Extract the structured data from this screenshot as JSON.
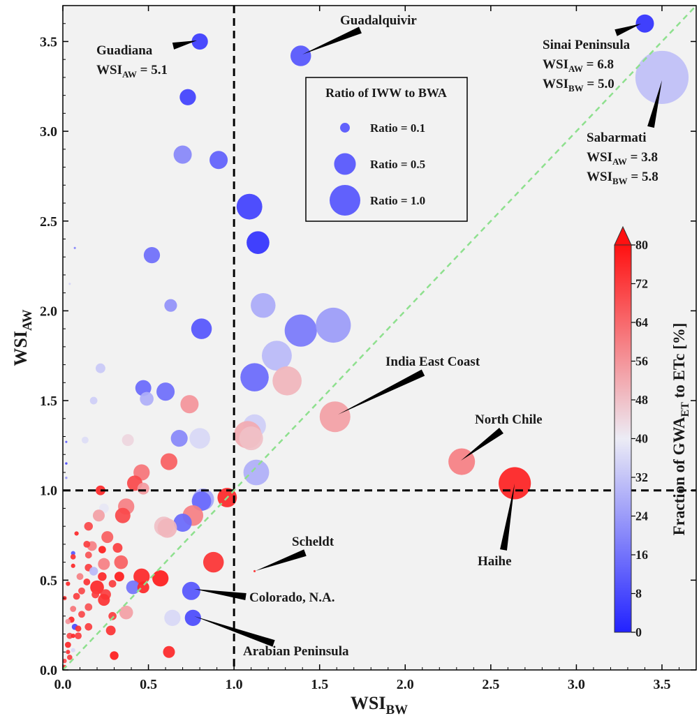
{
  "chart_data": {
    "type": "scatter",
    "xlabel": {
      "main": "WSI",
      "sub": "BW"
    },
    "ylabel": {
      "main": "WSI",
      "sub": "AW"
    },
    "xlim": [
      0,
      3.7
    ],
    "ylim": [
      0,
      3.7
    ],
    "x_ticks": [
      "0.0",
      "0.5",
      "1.0",
      "1.5",
      "2.0",
      "2.5",
      "3.0",
      "3.5"
    ],
    "y_ticks": [
      "0.0",
      "0.5",
      "1.0",
      "1.5",
      "2.0",
      "2.5",
      "3.0",
      "3.5"
    ],
    "grid": false,
    "background_color": "#f2f2f2",
    "reference_lines": [
      {
        "type": "vertical",
        "x": 1.0,
        "style": "dashed",
        "color": "#000000"
      },
      {
        "type": "horizontal",
        "y": 1.0,
        "style": "dashed",
        "color": "#000000"
      },
      {
        "type": "diagonal",
        "from": [
          0,
          0
        ],
        "to": [
          3.7,
          3.7
        ],
        "style": "dashed",
        "color": "#8ee08e"
      }
    ],
    "size_legend": {
      "title": "Ratio of IWW to BWA",
      "placement": "upper-center",
      "entries": [
        {
          "label": "Ratio = 0.1",
          "ratio": 0.1
        },
        {
          "label": "Ratio = 0.5",
          "ratio": 0.5
        },
        {
          "label": "Ratio = 1.0",
          "ratio": 1.0
        }
      ]
    },
    "colorbar": {
      "label_parts": [
        "Fraction of GWA",
        "ET",
        " to ETc [%]"
      ],
      "min": 0,
      "max": 80,
      "ticks": [
        "0",
        "8",
        "16",
        "24",
        "32",
        "40",
        "48",
        "56",
        "64",
        "72",
        "80"
      ],
      "colors": [
        "#2222ff",
        "#ececf5",
        "#ff1111"
      ],
      "extend": "max",
      "placement": "right"
    },
    "annotations": [
      {
        "name": "Guadiana",
        "lines": [
          {
            "text": "Guadiana"
          },
          {
            "main": "WSI",
            "sub": "AW",
            "tail": " = 5.1"
          }
        ]
      },
      {
        "name": "Guadalquivir",
        "lines": [
          {
            "text": "Guadalquivir"
          }
        ]
      },
      {
        "name": "Sinai Peninsula",
        "lines": [
          {
            "text": "Sinai Peninsula"
          },
          {
            "main": "WSI",
            "sub": "AW",
            "tail": " = 6.8"
          },
          {
            "main": "WSI",
            "sub": "BW",
            "tail": " = 5.0"
          }
        ]
      },
      {
        "name": "Sabarmati",
        "lines": [
          {
            "text": "Sabarmati"
          },
          {
            "main": "WSI",
            "sub": "AW",
            "tail": " = 3.8"
          },
          {
            "main": "WSI",
            "sub": "BW",
            "tail": " = 5.8"
          }
        ]
      },
      {
        "name": "India East Coast",
        "lines": [
          {
            "text": "India East Coast"
          }
        ]
      },
      {
        "name": "North Chile",
        "lines": [
          {
            "text": "North Chile"
          }
        ]
      },
      {
        "name": "Haihe",
        "lines": [
          {
            "text": "Haihe"
          }
        ]
      },
      {
        "name": "Scheldt",
        "lines": [
          {
            "text": "Scheldt"
          }
        ]
      },
      {
        "name": "Colorado, N.A.",
        "lines": [
          {
            "text": "Colorado, N.A."
          }
        ]
      },
      {
        "name": "Arabian Peninsula",
        "lines": [
          {
            "text": "Arabian Peninsula"
          }
        ]
      }
    ],
    "points": [
      {
        "x": 0.8,
        "y": 3.5,
        "ratio": 0.28,
        "pct": 5,
        "label": "Guadiana"
      },
      {
        "x": 1.39,
        "y": 3.42,
        "ratio": 0.45,
        "pct": 10,
        "label": "Guadalquivir"
      },
      {
        "x": 3.4,
        "y": 3.6,
        "ratio": 0.35,
        "pct": 3,
        "label": "Sinai Peninsula"
      },
      {
        "x": 3.5,
        "y": 3.3,
        "ratio": 3.0,
        "pct": 31,
        "label": "Sabarmati"
      },
      {
        "x": 0.73,
        "y": 3.19,
        "ratio": 0.28,
        "pct": 6
      },
      {
        "x": 0.7,
        "y": 2.87,
        "ratio": 0.35,
        "pct": 20
      },
      {
        "x": 0.91,
        "y": 2.84,
        "ratio": 0.35,
        "pct": 12
      },
      {
        "x": 1.09,
        "y": 2.58,
        "ratio": 0.7,
        "pct": 6
      },
      {
        "x": 1.14,
        "y": 2.38,
        "ratio": 0.55,
        "pct": 3
      },
      {
        "x": 0.52,
        "y": 2.31,
        "ratio": 0.28,
        "pct": 15
      },
      {
        "x": 0.07,
        "y": 2.35,
        "ratio": 0.005,
        "pct": 20
      },
      {
        "x": 0.04,
        "y": 2.15,
        "ratio": 0.005,
        "pct": 35
      },
      {
        "x": 0.63,
        "y": 2.03,
        "ratio": 0.17,
        "pct": 22
      },
      {
        "x": 1.17,
        "y": 2.03,
        "ratio": 0.65,
        "pct": 27
      },
      {
        "x": 0.81,
        "y": 1.9,
        "ratio": 0.45,
        "pct": 10
      },
      {
        "x": 1.39,
        "y": 1.89,
        "ratio": 1.1,
        "pct": 17
      },
      {
        "x": 1.58,
        "y": 1.92,
        "ratio": 1.3,
        "pct": 24
      },
      {
        "x": 1.25,
        "y": 1.75,
        "ratio": 0.95,
        "pct": 30
      },
      {
        "x": 0.22,
        "y": 1.68,
        "ratio": 0.1,
        "pct": 33
      },
      {
        "x": 1.12,
        "y": 1.63,
        "ratio": 0.85,
        "pct": 14
      },
      {
        "x": 1.31,
        "y": 1.61,
        "ratio": 0.9,
        "pct": 50
      },
      {
        "x": 0.47,
        "y": 1.57,
        "ratio": 0.27,
        "pct": 14
      },
      {
        "x": 0.6,
        "y": 1.55,
        "ratio": 0.35,
        "pct": 15
      },
      {
        "x": 0.49,
        "y": 1.51,
        "ratio": 0.2,
        "pct": 28
      },
      {
        "x": 0.18,
        "y": 1.5,
        "ratio": 0.06,
        "pct": 34
      },
      {
        "x": 0.74,
        "y": 1.48,
        "ratio": 0.35,
        "pct": 56
      },
      {
        "x": 1.59,
        "y": 1.41,
        "ratio": 1.0,
        "pct": 54
      },
      {
        "x": 1.12,
        "y": 1.36,
        "ratio": 0.55,
        "pct": 34
      },
      {
        "x": 1.08,
        "y": 1.31,
        "ratio": 0.8,
        "pct": 52
      },
      {
        "x": 1.1,
        "y": 1.29,
        "ratio": 0.6,
        "pct": 48
      },
      {
        "x": 0.68,
        "y": 1.29,
        "ratio": 0.3,
        "pct": 20
      },
      {
        "x": 0.8,
        "y": 1.29,
        "ratio": 0.45,
        "pct": 36
      },
      {
        "x": 0.13,
        "y": 1.28,
        "ratio": 0.05,
        "pct": 37
      },
      {
        "x": 0.38,
        "y": 1.28,
        "ratio": 0.15,
        "pct": 44
      },
      {
        "x": 0.02,
        "y": 1.27,
        "ratio": 0.005,
        "pct": 12
      },
      {
        "x": 2.33,
        "y": 1.16,
        "ratio": 0.75,
        "pct": 60,
        "label": "North Chile"
      },
      {
        "x": 0.62,
        "y": 1.16,
        "ratio": 0.3,
        "pct": 66
      },
      {
        "x": 0.02,
        "y": 1.15,
        "ratio": 0.006,
        "pct": 8
      },
      {
        "x": 1.13,
        "y": 1.1,
        "ratio": 0.7,
        "pct": 28
      },
      {
        "x": 0.46,
        "y": 1.1,
        "ratio": 0.28,
        "pct": 62
      },
      {
        "x": 0.02,
        "y": 1.07,
        "ratio": 0.006,
        "pct": 24
      },
      {
        "x": 2.64,
        "y": 1.04,
        "ratio": 1.1,
        "pct": 77,
        "label": "Haihe"
      },
      {
        "x": 0.42,
        "y": 1.04,
        "ratio": 0.25,
        "pct": 70
      },
      {
        "x": 0.47,
        "y": 1.01,
        "ratio": 0.15,
        "pct": 55
      },
      {
        "x": 0.22,
        "y": 1.0,
        "ratio": 0.1,
        "pct": 76
      },
      {
        "x": 0.96,
        "y": 0.96,
        "ratio": 0.4,
        "pct": 76
      },
      {
        "x": 0.82,
        "y": 0.95,
        "ratio": 0.5,
        "pct": 26
      },
      {
        "x": 0.81,
        "y": 0.94,
        "ratio": 0.4,
        "pct": 14
      },
      {
        "x": 0.37,
        "y": 0.91,
        "ratio": 0.28,
        "pct": 60
      },
      {
        "x": 0.24,
        "y": 0.9,
        "ratio": 0.1,
        "pct": 39
      },
      {
        "x": 0.35,
        "y": 0.86,
        "ratio": 0.25,
        "pct": 70
      },
      {
        "x": 0.76,
        "y": 0.86,
        "ratio": 0.45,
        "pct": 60
      },
      {
        "x": 0.21,
        "y": 0.86,
        "ratio": 0.15,
        "pct": 54
      },
      {
        "x": 0.7,
        "y": 0.82,
        "ratio": 0.35,
        "pct": 14
      },
      {
        "x": 0.59,
        "y": 0.8,
        "ratio": 0.4,
        "pct": 48
      },
      {
        "x": 0.61,
        "y": 0.79,
        "ratio": 0.4,
        "pct": 50
      },
      {
        "x": 0.15,
        "y": 0.8,
        "ratio": 0.08,
        "pct": 70
      },
      {
        "x": 0.26,
        "y": 0.74,
        "ratio": 0.15,
        "pct": 66
      },
      {
        "x": 0.17,
        "y": 0.69,
        "ratio": 0.1,
        "pct": 60
      },
      {
        "x": 0.08,
        "y": 0.76,
        "ratio": 0.02,
        "pct": 76
      },
      {
        "x": 0.14,
        "y": 0.7,
        "ratio": 0.05,
        "pct": 72
      },
      {
        "x": 0.23,
        "y": 0.67,
        "ratio": 0.06,
        "pct": 78
      },
      {
        "x": 0.32,
        "y": 0.68,
        "ratio": 0.1,
        "pct": 72
      },
      {
        "x": 0.06,
        "y": 0.65,
        "ratio": 0.02,
        "pct": 10
      },
      {
        "x": 0.06,
        "y": 0.63,
        "ratio": 0.03,
        "pct": 74
      },
      {
        "x": 0.15,
        "y": 0.64,
        "ratio": 0.05,
        "pct": 68
      },
      {
        "x": 0.34,
        "y": 0.6,
        "ratio": 0.2,
        "pct": 66
      },
      {
        "x": 0.88,
        "y": 0.6,
        "ratio": 0.45,
        "pct": 74
      },
      {
        "x": 0.24,
        "y": 0.59,
        "ratio": 0.15,
        "pct": 60
      },
      {
        "x": 0.15,
        "y": 0.57,
        "ratio": 0.06,
        "pct": 72
      },
      {
        "x": 0.06,
        "y": 0.58,
        "ratio": 0.02,
        "pct": 76
      },
      {
        "x": 0.18,
        "y": 0.55,
        "ratio": 0.08,
        "pct": 30
      },
      {
        "x": 1.12,
        "y": 0.55,
        "ratio": 0.005,
        "pct": 74,
        "label": "Scheldt"
      },
      {
        "x": 0.1,
        "y": 0.52,
        "ratio": 0.05,
        "pct": 60
      },
      {
        "x": 0.23,
        "y": 0.52,
        "ratio": 0.08,
        "pct": 76
      },
      {
        "x": 0.33,
        "y": 0.52,
        "ratio": 0.1,
        "pct": 78
      },
      {
        "x": 0.46,
        "y": 0.52,
        "ratio": 0.28,
        "pct": 76
      },
      {
        "x": 0.57,
        "y": 0.51,
        "ratio": 0.28,
        "pct": 78
      },
      {
        "x": 0.14,
        "y": 0.49,
        "ratio": 0.05,
        "pct": 74
      },
      {
        "x": 0.29,
        "y": 0.48,
        "ratio": 0.06,
        "pct": 72
      },
      {
        "x": 0.03,
        "y": 0.48,
        "ratio": 0.02,
        "pct": 76
      },
      {
        "x": 0.41,
        "y": 0.46,
        "ratio": 0.2,
        "pct": 16
      },
      {
        "x": 0.47,
        "y": 0.46,
        "ratio": 0.15,
        "pct": 76
      },
      {
        "x": 0.2,
        "y": 0.46,
        "ratio": 0.2,
        "pct": 76
      },
      {
        "x": 0.11,
        "y": 0.44,
        "ratio": 0.05,
        "pct": 70
      },
      {
        "x": 0.19,
        "y": 0.42,
        "ratio": 0.06,
        "pct": 72
      },
      {
        "x": 0.25,
        "y": 0.42,
        "ratio": 0.12,
        "pct": 72
      },
      {
        "x": 0.08,
        "y": 0.41,
        "ratio": 0.05,
        "pct": 72
      },
      {
        "x": 0.75,
        "y": 0.44,
        "ratio": 0.35,
        "pct": 10,
        "label": "Colorado, N.A."
      },
      {
        "x": 0.01,
        "y": 0.4,
        "ratio": 0.02,
        "pct": 74
      },
      {
        "x": 0.24,
        "y": 0.39,
        "ratio": 0.15,
        "pct": 74
      },
      {
        "x": 0.15,
        "y": 0.35,
        "ratio": 0.06,
        "pct": 68
      },
      {
        "x": 0.06,
        "y": 0.34,
        "ratio": 0.04,
        "pct": 62
      },
      {
        "x": 0.37,
        "y": 0.32,
        "ratio": 0.2,
        "pct": 54
      },
      {
        "x": 0.11,
        "y": 0.31,
        "ratio": 0.05,
        "pct": 70
      },
      {
        "x": 0.29,
        "y": 0.3,
        "ratio": 0.07,
        "pct": 72
      },
      {
        "x": 0.05,
        "y": 0.28,
        "ratio": 0.04,
        "pct": 76
      },
      {
        "x": 0.64,
        "y": 0.29,
        "ratio": 0.28,
        "pct": 36
      },
      {
        "x": 0.76,
        "y": 0.29,
        "ratio": 0.28,
        "pct": 8,
        "label": "Arabian Peninsula"
      },
      {
        "x": 0.03,
        "y": 0.27,
        "ratio": 0.03,
        "pct": 56
      },
      {
        "x": 0.15,
        "y": 0.24,
        "ratio": 0.06,
        "pct": 72
      },
      {
        "x": 0.07,
        "y": 0.24,
        "ratio": 0.04,
        "pct": 8
      },
      {
        "x": 0.09,
        "y": 0.23,
        "ratio": 0.04,
        "pct": 74
      },
      {
        "x": 0.28,
        "y": 0.22,
        "ratio": 0.1,
        "pct": 74
      },
      {
        "x": 0.04,
        "y": 0.19,
        "ratio": 0.04,
        "pct": 70
      },
      {
        "x": 0.06,
        "y": 0.19,
        "ratio": 0.02,
        "pct": 76
      },
      {
        "x": 0.09,
        "y": 0.19,
        "ratio": 0.05,
        "pct": 72
      },
      {
        "x": 0.03,
        "y": 0.14,
        "ratio": 0.04,
        "pct": 76
      },
      {
        "x": 0.06,
        "y": 0.11,
        "ratio": 0.02,
        "pct": 36
      },
      {
        "x": 0.03,
        "y": 0.1,
        "ratio": 0.02,
        "pct": 74
      },
      {
        "x": 0.62,
        "y": 0.1,
        "ratio": 0.15,
        "pct": 76
      },
      {
        "x": 0.3,
        "y": 0.08,
        "ratio": 0.08,
        "pct": 78
      },
      {
        "x": 0.04,
        "y": 0.07,
        "ratio": 0.03,
        "pct": 72
      },
      {
        "x": 0.01,
        "y": 0.05,
        "ratio": 0.02,
        "pct": 70
      },
      {
        "x": 0.01,
        "y": 0.02,
        "ratio": 0.01,
        "pct": 74
      }
    ]
  }
}
